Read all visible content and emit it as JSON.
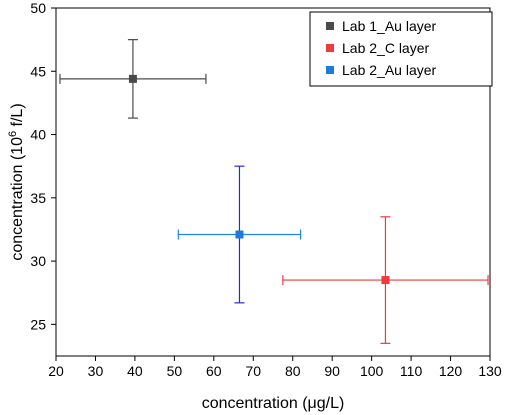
{
  "chart_data": {
    "type": "scatter",
    "xlabel": "concentration (μg/L)",
    "ylabel_prefix": "concentration (10",
    "ylabel_exponent": "6",
    "ylabel_suffix": " f/L)",
    "xlim": [
      20,
      130
    ],
    "ylim": [
      22.5,
      50
    ],
    "x_ticks": [
      20,
      30,
      40,
      50,
      60,
      70,
      80,
      90,
      100,
      110,
      120,
      130
    ],
    "y_ticks": [
      25,
      30,
      35,
      40,
      45,
      50
    ],
    "grid": false,
    "legend_position": "top-right",
    "series": [
      {
        "name": "Lab 1_Au layer",
        "color": "#4a4a4a",
        "x": 39.5,
        "y": 44.4,
        "x_err": [
          21,
          58
        ],
        "y_err": [
          41.3,
          47.5
        ]
      },
      {
        "name": "Lab 2_C layer",
        "color": "#ee3b3b",
        "x": 103.5,
        "y": 28.5,
        "x_err": [
          77.5,
          129.5
        ],
        "y_err": [
          23.5,
          33.5
        ]
      },
      {
        "name": "Lab 2_Au layer",
        "color": "#1f7bdb",
        "err_x_color": "#1f87e0",
        "err_y_color": "#2c2cc8",
        "x": 66.5,
        "y": 32.1,
        "x_err": [
          51,
          82
        ],
        "y_err": [
          26.7,
          37.5
        ]
      }
    ]
  }
}
